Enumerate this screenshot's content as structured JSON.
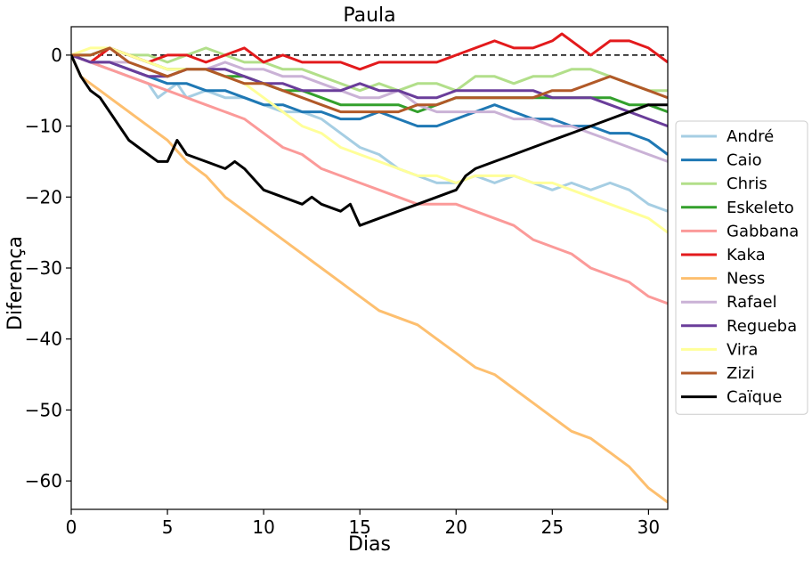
{
  "chart_data": {
    "type": "line",
    "title": "Paula",
    "xlabel": "Dias",
    "ylabel": "Diferença",
    "xlim": [
      0,
      31
    ],
    "ylim": [
      -64,
      4
    ],
    "xticks": [
      0,
      5,
      10,
      15,
      20,
      25,
      30
    ],
    "yticks": [
      0,
      -10,
      -20,
      -30,
      -40,
      -50,
      -60
    ],
    "grid": false,
    "legend_position": "right",
    "reference_line": {
      "y": 0,
      "style": "dashed",
      "color": "#000000"
    },
    "series": [
      {
        "name": "André",
        "color": "#a6cee3",
        "x": [
          0,
          1,
          2,
          3,
          4,
          4.5,
          5,
          5.5,
          6,
          7,
          8,
          9,
          10,
          11,
          12,
          13,
          14,
          15,
          16,
          17,
          18,
          19,
          20,
          21,
          22,
          23,
          24,
          25,
          26,
          27,
          28,
          29,
          30,
          31
        ],
        "y": [
          0,
          -1,
          -2,
          -3,
          -4,
          -6,
          -5,
          -4,
          -6,
          -5,
          -6,
          -6,
          -7,
          -8,
          -8,
          -9,
          -11,
          -13,
          -14,
          -16,
          -17,
          -18,
          -18,
          -17,
          -18,
          -17,
          -18,
          -19,
          -18,
          -19,
          -18,
          -19,
          -21,
          -22
        ]
      },
      {
        "name": "Caio",
        "color": "#1f78b4",
        "x": [
          0,
          1,
          2,
          3,
          4,
          5,
          6,
          7,
          8,
          9,
          10,
          11,
          12,
          13,
          14,
          15,
          16,
          17,
          18,
          19,
          20,
          21,
          22,
          23,
          24,
          25,
          26,
          27,
          28,
          29,
          30,
          31
        ],
        "y": [
          0,
          -1,
          -1,
          -2,
          -3,
          -4,
          -4,
          -5,
          -5,
          -6,
          -7,
          -7,
          -8,
          -8,
          -9,
          -9,
          -8,
          -9,
          -10,
          -10,
          -9,
          -8,
          -7,
          -8,
          -9,
          -9,
          -10,
          -10,
          -11,
          -11,
          -12,
          -14
        ]
      },
      {
        "name": "Chris",
        "color": "#b2df8a",
        "x": [
          0,
          1,
          2,
          3,
          4,
          5,
          6,
          7,
          8,
          9,
          10,
          11,
          12,
          13,
          14,
          15,
          16,
          17,
          18,
          19,
          20,
          21,
          22,
          23,
          24,
          25,
          26,
          27,
          28,
          29,
          30,
          31
        ],
        "y": [
          0,
          0,
          1,
          0,
          0,
          -1,
          0,
          1,
          0,
          -1,
          -1,
          -2,
          -2,
          -3,
          -4,
          -5,
          -4,
          -5,
          -4,
          -4,
          -5,
          -3,
          -3,
          -4,
          -3,
          -3,
          -2,
          -2,
          -3,
          -4,
          -5,
          -5
        ]
      },
      {
        "name": "Eskeleto",
        "color": "#33a02c",
        "x": [
          0,
          1,
          2,
          3,
          4,
          5,
          6,
          7,
          8,
          9,
          10,
          11,
          12,
          13,
          14,
          15,
          16,
          17,
          18,
          19,
          20,
          21,
          22,
          23,
          24,
          25,
          26,
          27,
          28,
          29,
          30,
          31
        ],
        "y": [
          0,
          0,
          1,
          0,
          -1,
          -2,
          -2,
          -2,
          -3,
          -3,
          -4,
          -5,
          -5,
          -6,
          -7,
          -7,
          -7,
          -7,
          -8,
          -7,
          -6,
          -6,
          -6,
          -6,
          -6,
          -6,
          -6,
          -6,
          -6,
          -7,
          -7,
          -8
        ]
      },
      {
        "name": "Gabbana",
        "color": "#fb9a99",
        "x": [
          0,
          1,
          2,
          3,
          4,
          5,
          6,
          7,
          8,
          9,
          10,
          11,
          12,
          13,
          14,
          15,
          16,
          17,
          18,
          19,
          20,
          21,
          22,
          23,
          24,
          25,
          26,
          27,
          28,
          29,
          30,
          31
        ],
        "y": [
          0,
          -1,
          -2,
          -3,
          -4,
          -5,
          -6,
          -7,
          -8,
          -9,
          -11,
          -13,
          -14,
          -16,
          -17,
          -18,
          -19,
          -20,
          -21,
          -21,
          -21,
          -22,
          -23,
          -24,
          -26,
          -27,
          -28,
          -30,
          -31,
          -32,
          -34,
          -35
        ]
      },
      {
        "name": "Kaka",
        "color": "#e31a1c",
        "x": [
          0,
          1,
          2,
          3,
          4,
          5,
          6,
          7,
          8,
          9,
          10,
          11,
          12,
          13,
          14,
          15,
          16,
          17,
          18,
          19,
          20,
          21,
          22,
          23,
          24,
          25,
          25.5,
          26,
          27,
          28,
          29,
          30,
          31
        ],
        "y": [
          0,
          -1,
          1,
          0,
          -1,
          0,
          0,
          -1,
          0,
          1,
          -1,
          0,
          -1,
          -1,
          -1,
          -2,
          -1,
          -1,
          -1,
          -1,
          0,
          1,
          2,
          1,
          1,
          2,
          3,
          2,
          0,
          2,
          2,
          1,
          -1
        ]
      },
      {
        "name": "Ness",
        "color": "#fdbf6f",
        "x": [
          0,
          0.5,
          1,
          1.5,
          2,
          3,
          4,
          5,
          6,
          7,
          8,
          9,
          10,
          11,
          12,
          13,
          14,
          15,
          16,
          17,
          18,
          19,
          20,
          21,
          22,
          23,
          24,
          25,
          26,
          27,
          28,
          29,
          30,
          31
        ],
        "y": [
          0,
          -3,
          -4,
          -5,
          -6,
          -8,
          -10,
          -12,
          -15,
          -17,
          -20,
          -22,
          -24,
          -26,
          -28,
          -30,
          -32,
          -34,
          -36,
          -37,
          -38,
          -40,
          -42,
          -44,
          -45,
          -47,
          -49,
          -51,
          -53,
          -54,
          -56,
          -58,
          -61,
          -63
        ]
      },
      {
        "name": "Rafael",
        "color": "#cab2d6",
        "x": [
          0,
          1,
          2,
          3,
          4,
          5,
          6,
          7,
          8,
          9,
          10,
          11,
          12,
          13,
          14,
          15,
          16,
          17,
          18,
          19,
          20,
          21,
          22,
          23,
          24,
          25,
          26,
          27,
          28,
          29,
          30,
          31
        ],
        "y": [
          0,
          -1,
          -1,
          -1,
          -2,
          -3,
          -2,
          -2,
          -1,
          -2,
          -2,
          -3,
          -3,
          -4,
          -5,
          -6,
          -6,
          -5,
          -7,
          -8,
          -8,
          -8,
          -8,
          -9,
          -9,
          -10,
          -10,
          -11,
          -12,
          -13,
          -14,
          -15
        ]
      },
      {
        "name": "Regueba",
        "color": "#6a3d9a",
        "x": [
          0,
          1,
          2,
          3,
          4,
          5,
          6,
          7,
          8,
          9,
          10,
          11,
          12,
          13,
          14,
          15,
          16,
          17,
          18,
          19,
          20,
          21,
          22,
          23,
          24,
          25,
          26,
          27,
          28,
          29,
          30,
          31
        ],
        "y": [
          0,
          -1,
          -1,
          -2,
          -3,
          -3,
          -2,
          -2,
          -2,
          -3,
          -4,
          -4,
          -5,
          -5,
          -5,
          -4,
          -5,
          -5,
          -6,
          -6,
          -5,
          -5,
          -5,
          -5,
          -5,
          -6,
          -6,
          -6,
          -7,
          -8,
          -9,
          -10
        ]
      },
      {
        "name": "Vira",
        "color": "#ffff99",
        "x": [
          0,
          1,
          2,
          3,
          4,
          5,
          6,
          7,
          8,
          9,
          10,
          11,
          12,
          13,
          14,
          15,
          16,
          17,
          18,
          19,
          20,
          21,
          22,
          23,
          24,
          25,
          26,
          27,
          28,
          29,
          30,
          31
        ],
        "y": [
          0,
          1,
          1,
          0,
          -1,
          -2,
          -2,
          -2,
          -3,
          -4,
          -6,
          -8,
          -10,
          -11,
          -13,
          -14,
          -15,
          -16,
          -17,
          -17,
          -18,
          -17,
          -17,
          -17,
          -18,
          -18,
          -19,
          -20,
          -21,
          -22,
          -23,
          -25
        ]
      },
      {
        "name": "Zizi",
        "color": "#b15928",
        "x": [
          0,
          1,
          2,
          3,
          4,
          5,
          6,
          7,
          8,
          9,
          10,
          11,
          12,
          13,
          14,
          15,
          16,
          17,
          18,
          19,
          20,
          21,
          22,
          23,
          24,
          25,
          26,
          27,
          28,
          29,
          30,
          31
        ],
        "y": [
          0,
          0,
          1,
          -1,
          -2,
          -3,
          -2,
          -2,
          -3,
          -4,
          -4,
          -5,
          -6,
          -7,
          -8,
          -8,
          -8,
          -8,
          -7,
          -7,
          -6,
          -6,
          -6,
          -6,
          -6,
          -5,
          -5,
          -4,
          -3,
          -4,
          -5,
          -6
        ]
      },
      {
        "name": "Caïque",
        "color": "#000000",
        "x": [
          0,
          0.5,
          1,
          1.5,
          2,
          2.5,
          3,
          3.5,
          4,
          4.5,
          5,
          5.5,
          6,
          7,
          8,
          8.5,
          9,
          10,
          11,
          12,
          12.5,
          13,
          14,
          14.5,
          15,
          16,
          17,
          18,
          19,
          20,
          20.5,
          21,
          22,
          23,
          24,
          25,
          26,
          27,
          28,
          29,
          30,
          31
        ],
        "y": [
          0,
          -3,
          -5,
          -6,
          -8,
          -10,
          -12,
          -13,
          -14,
          -15,
          -15,
          -12,
          -14,
          -15,
          -16,
          -15,
          -16,
          -19,
          -20,
          -21,
          -20,
          -21,
          -22,
          -21,
          -24,
          -23,
          -22,
          -21,
          -20,
          -19,
          -17,
          -16,
          -15,
          -14,
          -13,
          -12,
          -11,
          -10,
          -9,
          -8,
          -7,
          -7
        ]
      }
    ]
  }
}
